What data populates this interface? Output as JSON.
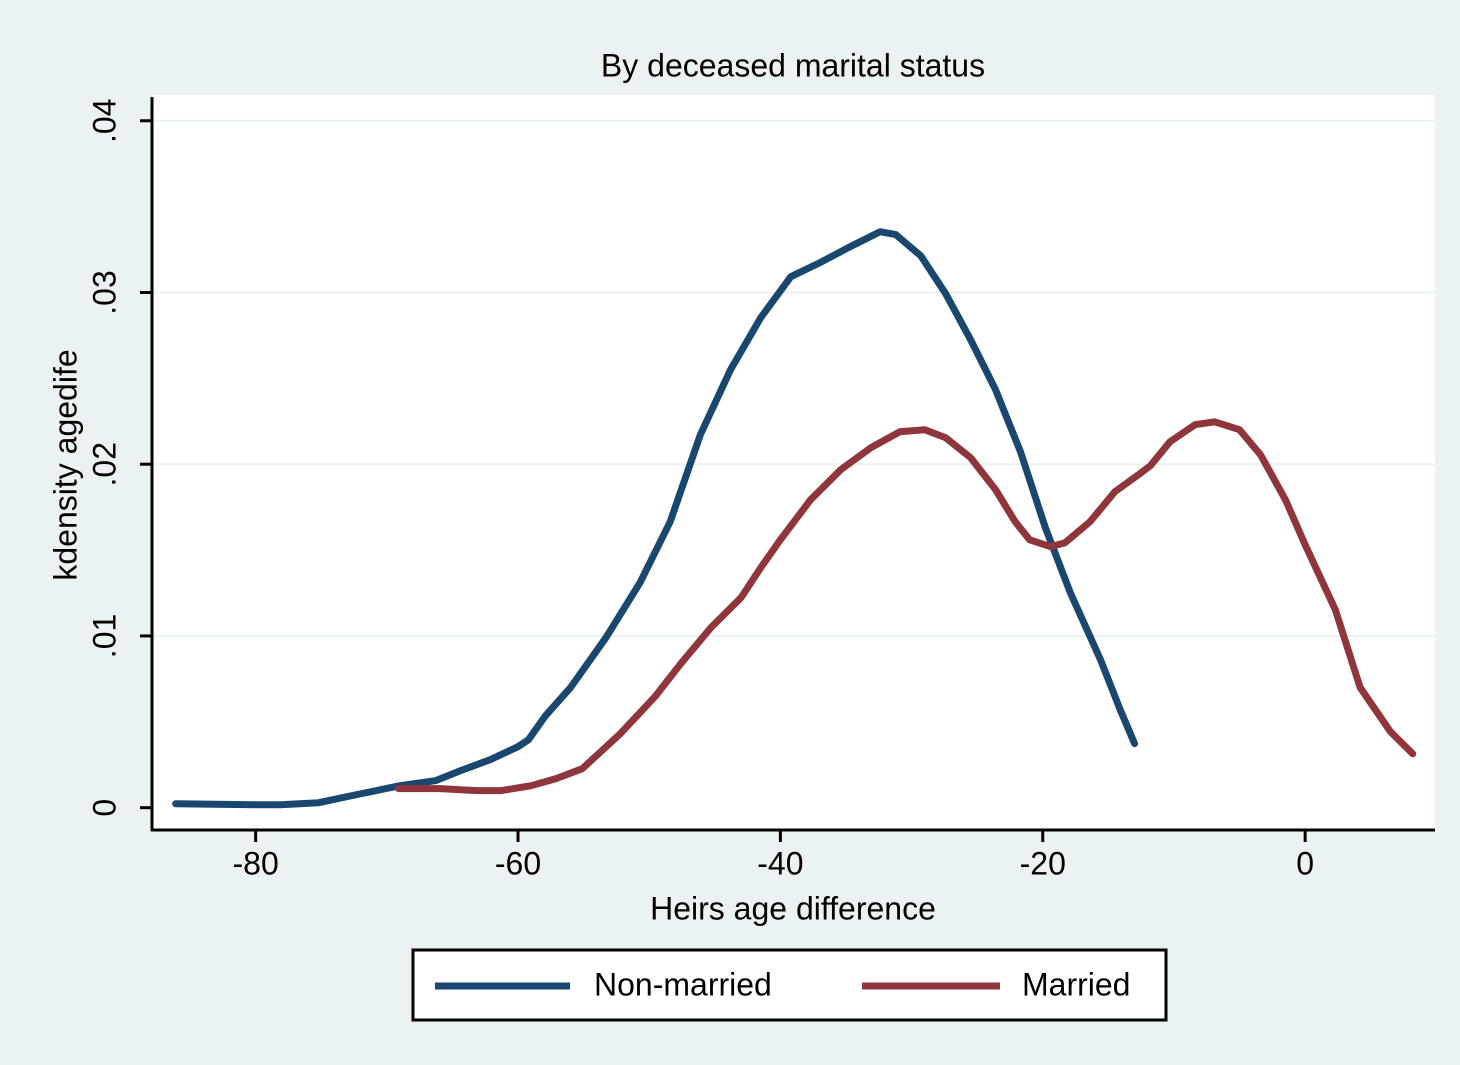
{
  "chart_data": {
    "type": "line",
    "title": "By deceased marital status",
    "xlabel": "Heirs age difference",
    "ylabel": "kdensity agedife",
    "xlim": [
      -87.9,
      9.9
    ],
    "ylim": [
      -0.0013,
      0.0415
    ],
    "xticks": [
      -80,
      -60,
      -40,
      -20,
      0
    ],
    "yticks": [
      0,
      {
        "value": 0.01,
        "label": ".01"
      },
      {
        "value": 0.02,
        "label": ".02"
      },
      {
        "value": 0.03,
        "label": ".03"
      },
      {
        "value": 0.04,
        "label": ".04"
      }
    ],
    "grid": true,
    "legend": "bottom",
    "series": [
      {
        "name": "Non-married",
        "color": "#1a476f",
        "x": [
          -86.1,
          -79.9,
          -78.1,
          -75.2,
          -72.3,
          -69.0,
          -66.3,
          -64.4,
          -62.1,
          -60.0,
          -59.2,
          -57.9,
          -56.0,
          -53.3,
          -50.7,
          -48.4,
          -46.1,
          -43.8,
          -41.5,
          -39.2,
          -37.0,
          -34.7,
          -32.4,
          -31.2,
          -29.3,
          -27.4,
          -25.5,
          -23.6,
          -21.7,
          -19.8,
          -17.9,
          -15.6,
          -14.1,
          -13.0
        ],
        "values": [
          0.00023,
          0.00017,
          0.00017,
          0.00029,
          0.00076,
          0.00128,
          0.00157,
          0.00215,
          0.0028,
          0.00355,
          0.00396,
          0.00536,
          0.00699,
          0.0099,
          0.0131,
          0.01665,
          0.02172,
          0.0255,
          0.02853,
          0.03092,
          0.03173,
          0.03266,
          0.03354,
          0.03337,
          0.03214,
          0.02993,
          0.02725,
          0.02434,
          0.02073,
          0.0163,
          0.01252,
          0.00862,
          0.00571,
          0.00373
        ]
      },
      {
        "name": "Married",
        "color": "#90353b",
        "x": [
          -69.1,
          -65.9,
          -63.2,
          -61.3,
          -59.0,
          -57.1,
          -55.1,
          -52.2,
          -49.5,
          -47.6,
          -45.3,
          -43.0,
          -41.5,
          -40.0,
          -37.7,
          -35.4,
          -33.1,
          -30.9,
          -29.0,
          -27.4,
          -25.5,
          -23.6,
          -22.1,
          -21.0,
          -19.4,
          -18.3,
          -16.4,
          -14.5,
          -12.6,
          -11.8,
          -10.3,
          -8.4,
          -6.9,
          -5.0,
          -3.4,
          -1.5,
          0,
          2.3,
          4.2,
          6.5,
          8.2
        ],
        "values": [
          0.00111,
          0.00111,
          0.00099,
          0.00099,
          0.00128,
          0.00169,
          0.00227,
          0.00431,
          0.00652,
          0.00838,
          0.01048,
          0.01223,
          0.01397,
          0.0156,
          0.01793,
          0.01968,
          0.02096,
          0.02189,
          0.02201,
          0.02154,
          0.02038,
          0.01852,
          0.01665,
          0.0156,
          0.0152,
          0.01543,
          0.01665,
          0.0184,
          0.01945,
          0.01991,
          0.02131,
          0.0223,
          0.02247,
          0.02201,
          0.02055,
          0.01793,
          0.01531,
          0.01153,
          0.00699,
          0.00443,
          0.00314
        ]
      }
    ]
  }
}
